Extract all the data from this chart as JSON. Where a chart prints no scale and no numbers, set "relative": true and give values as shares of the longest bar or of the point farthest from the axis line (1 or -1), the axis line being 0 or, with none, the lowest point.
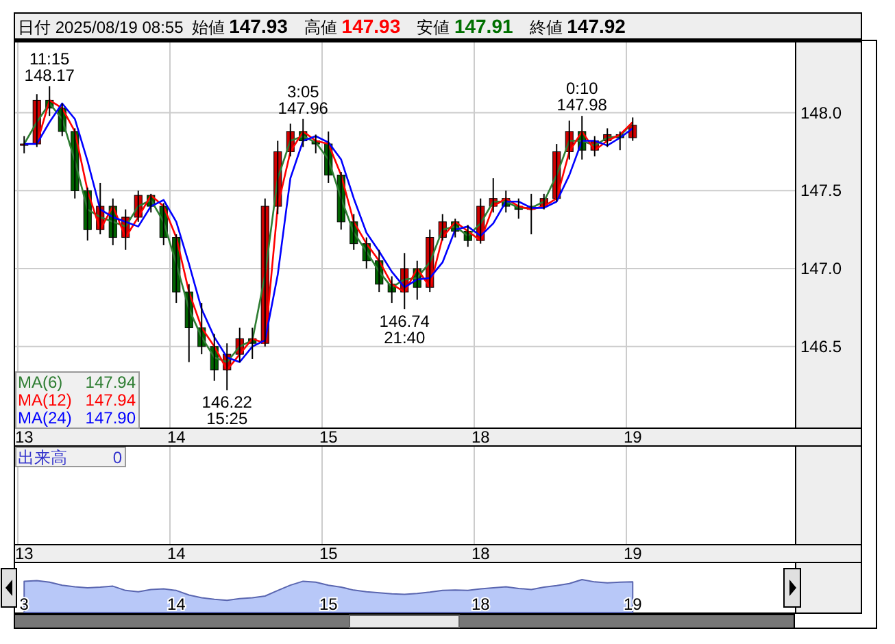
{
  "chart_data": [
    {
      "type": "candlestick",
      "title": "日付 2025/08/19 08:55",
      "annotations": [
        "始値 147.93",
        "高値 147.93",
        "安値 147.91",
        "終値 147.92",
        {
          "text": "11:15 148.17",
          "y": 148.17
        },
        {
          "text": "3:05 147.96",
          "y": 147.96
        },
        {
          "text": "0:10 147.98",
          "y": 147.98
        },
        {
          "text": "146.22 15:25",
          "y": 146.22
        },
        {
          "text": "146.74 21:40",
          "y": 146.74
        }
      ],
      "categories": [
        "13",
        null,
        null,
        null,
        null,
        null,
        null,
        null,
        null,
        null,
        null,
        null,
        "14",
        null,
        null,
        null,
        null,
        null,
        null,
        null,
        null,
        null,
        null,
        null,
        "15",
        null,
        null,
        null,
        null,
        null,
        null,
        null,
        null,
        null,
        null,
        null,
        "18",
        null,
        null,
        null,
        null,
        null,
        null,
        null,
        null,
        null,
        null,
        null,
        "19"
      ],
      "ohlc": [
        [
          147.8,
          147.85,
          147.74,
          147.8
        ],
        [
          147.8,
          148.12,
          147.78,
          148.08
        ],
        [
          148.08,
          148.17,
          147.98,
          148.03
        ],
        [
          148.03,
          148.06,
          147.85,
          147.88
        ],
        [
          147.88,
          147.9,
          147.45,
          147.5
        ],
        [
          147.5,
          147.52,
          147.18,
          147.25
        ],
        [
          147.25,
          147.55,
          147.22,
          147.4
        ],
        [
          147.4,
          147.45,
          147.15,
          147.2
        ],
        [
          147.2,
          147.38,
          147.12,
          147.33
        ],
        [
          147.33,
          147.5,
          147.3,
          147.47
        ],
        [
          147.47,
          147.48,
          147.36,
          147.4
        ],
        [
          147.4,
          147.42,
          147.15,
          147.2
        ],
        [
          147.2,
          147.22,
          146.78,
          146.85
        ],
        [
          146.85,
          146.9,
          146.4,
          146.62
        ],
        [
          146.62,
          146.78,
          146.45,
          146.5
        ],
        [
          146.5,
          146.58,
          146.28,
          146.35
        ],
        [
          146.35,
          146.52,
          146.22,
          146.45
        ],
        [
          146.45,
          146.62,
          146.4,
          146.55
        ],
        [
          146.55,
          146.62,
          146.42,
          146.52
        ],
        [
          146.52,
          147.45,
          146.5,
          147.4
        ],
        [
          147.4,
          147.82,
          147.35,
          147.75
        ],
        [
          147.75,
          147.93,
          147.72,
          147.88
        ],
        [
          147.88,
          147.96,
          147.78,
          147.82
        ],
        [
          147.82,
          147.86,
          147.74,
          147.8
        ],
        [
          147.8,
          147.88,
          147.55,
          147.6
        ],
        [
          147.6,
          147.62,
          147.25,
          147.3
        ],
        [
          147.3,
          147.35,
          147.12,
          147.16
        ],
        [
          147.16,
          147.2,
          147.0,
          147.05
        ],
        [
          147.05,
          147.12,
          146.85,
          146.9
        ],
        [
          146.9,
          146.95,
          146.78,
          146.85
        ],
        [
          146.85,
          147.1,
          146.74,
          147.0
        ],
        [
          147.0,
          147.05,
          146.8,
          146.88
        ],
        [
          146.88,
          147.25,
          146.85,
          147.2
        ],
        [
          147.2,
          147.35,
          147.18,
          147.3
        ],
        [
          147.3,
          147.32,
          147.2,
          147.24
        ],
        [
          147.24,
          147.28,
          147.14,
          147.18
        ],
        [
          147.18,
          147.45,
          147.16,
          147.4
        ],
        [
          147.4,
          147.58,
          147.36,
          147.45
        ],
        [
          147.45,
          147.5,
          147.36,
          147.4
        ],
        [
          147.4,
          147.45,
          147.32,
          147.38
        ],
        [
          147.38,
          147.48,
          147.22,
          147.4
        ],
        [
          147.4,
          147.48,
          147.38,
          147.45
        ],
        [
          147.45,
          147.8,
          147.43,
          147.75
        ],
        [
          147.75,
          147.95,
          147.7,
          147.88
        ],
        [
          147.88,
          147.98,
          147.7,
          147.76
        ],
        [
          147.76,
          147.85,
          147.72,
          147.82
        ],
        [
          147.82,
          147.9,
          147.78,
          147.86
        ],
        [
          147.86,
          147.88,
          147.76,
          147.84
        ],
        [
          147.84,
          147.97,
          147.82,
          147.92
        ]
      ],
      "series": [
        {
          "name": "MA(6) 147.94",
          "type": "line",
          "color": "#2e7d32",
          "values": [
            147.8,
            147.94,
            148.06,
            147.96,
            147.69,
            147.38,
            147.33,
            147.3,
            147.27,
            147.4,
            147.44,
            147.3,
            147.03,
            146.74,
            146.56,
            146.43,
            146.4,
            146.5,
            146.54,
            146.96,
            147.58,
            147.82,
            147.85,
            147.81,
            147.7,
            147.45,
            147.23,
            147.11,
            146.98,
            146.88,
            146.93,
            146.94,
            147.04,
            147.25,
            147.27,
            147.21,
            147.29,
            147.43,
            147.43,
            147.39,
            147.39,
            147.43,
            147.6,
            147.82,
            147.82,
            147.79,
            147.84,
            147.85,
            147.94
          ]
        },
        {
          "name": "MA(12) 147.94",
          "type": "line",
          "color": "#ff0000",
          "values": [
            null,
            147.8,
            148.08,
            148.03,
            147.88,
            147.5,
            147.25,
            147.4,
            147.2,
            147.33,
            147.47,
            147.4,
            147.2,
            146.85,
            146.62,
            146.5,
            146.35,
            146.45,
            146.55,
            146.52,
            147.4,
            147.75,
            147.88,
            147.82,
            147.8,
            147.6,
            147.3,
            147.16,
            147.05,
            146.9,
            146.85,
            147.0,
            146.88,
            147.2,
            147.3,
            147.24,
            147.18,
            147.4,
            147.45,
            147.4,
            147.38,
            147.4,
            147.45,
            147.75,
            147.88,
            147.76,
            147.82,
            147.86,
            147.94
          ]
        },
        {
          "name": "MA(24) 147.90",
          "type": "line",
          "color": "#0000ff",
          "values": [
            147.8,
            147.8,
            147.94,
            148.06,
            147.96,
            147.69,
            147.38,
            147.33,
            147.3,
            147.27,
            147.4,
            147.44,
            147.3,
            147.03,
            146.74,
            146.56,
            146.43,
            146.4,
            146.5,
            146.54,
            146.96,
            147.58,
            147.82,
            147.85,
            147.81,
            147.7,
            147.45,
            147.23,
            147.11,
            146.98,
            146.88,
            146.93,
            146.94,
            147.04,
            147.25,
            147.27,
            147.21,
            147.29,
            147.43,
            147.43,
            147.39,
            147.39,
            147.43,
            147.6,
            147.82,
            147.82,
            147.79,
            147.84,
            147.9
          ]
        }
      ],
      "ylim": [
        145.98,
        148.46
      ],
      "yticks": [
        146.5,
        {
          "value": 147,
          "label": "147.0"
        },
        147.5,
        {
          "value": 148,
          "label": "148.0"
        }
      ],
      "grid": true,
      "legend": "bottom left"
    },
    {
      "type": "other",
      "annotations": [
        "出来高",
        "0"
      ],
      "categories": [
        "13",
        null,
        null,
        null,
        null,
        null,
        null,
        null,
        null,
        null,
        null,
        null,
        "14",
        null,
        null,
        null,
        null,
        null,
        null,
        null,
        null,
        null,
        null,
        null,
        "15",
        null,
        null,
        null,
        null,
        null,
        null,
        null,
        null,
        null,
        null,
        null,
        "18",
        null,
        null,
        null,
        null,
        null,
        null,
        null,
        null,
        null,
        null,
        null,
        "19"
      ]
    },
    {
      "type": "area",
      "relative": true,
      "color": "#b8c8f8",
      "categories": [
        "3",
        null,
        null,
        null,
        null,
        null,
        null,
        null,
        null,
        null,
        null,
        null,
        "14",
        null,
        null,
        null,
        null,
        null,
        null,
        null,
        null,
        null,
        null,
        null,
        "15",
        null,
        null,
        null,
        null,
        null,
        null,
        null,
        null,
        null,
        null,
        null,
        "18",
        null,
        null,
        null,
        null,
        null,
        null,
        null,
        null,
        null,
        null,
        null,
        "19"
      ],
      "values": [
        0.95,
        0.97,
        0.92,
        0.83,
        0.78,
        0.75,
        0.77,
        0.8,
        0.67,
        0.63,
        0.7,
        0.72,
        0.67,
        0.53,
        0.45,
        0.4,
        0.37,
        0.42,
        0.45,
        0.5,
        0.67,
        0.83,
        0.95,
        0.92,
        0.83,
        0.77,
        0.68,
        0.63,
        0.6,
        0.57,
        0.55,
        0.58,
        0.62,
        0.67,
        0.68,
        0.67,
        0.72,
        0.75,
        0.78,
        0.73,
        0.7,
        0.77,
        0.82,
        0.88,
        1,
        0.93,
        0.9,
        0.92,
        0.93
      ]
    }
  ]
}
